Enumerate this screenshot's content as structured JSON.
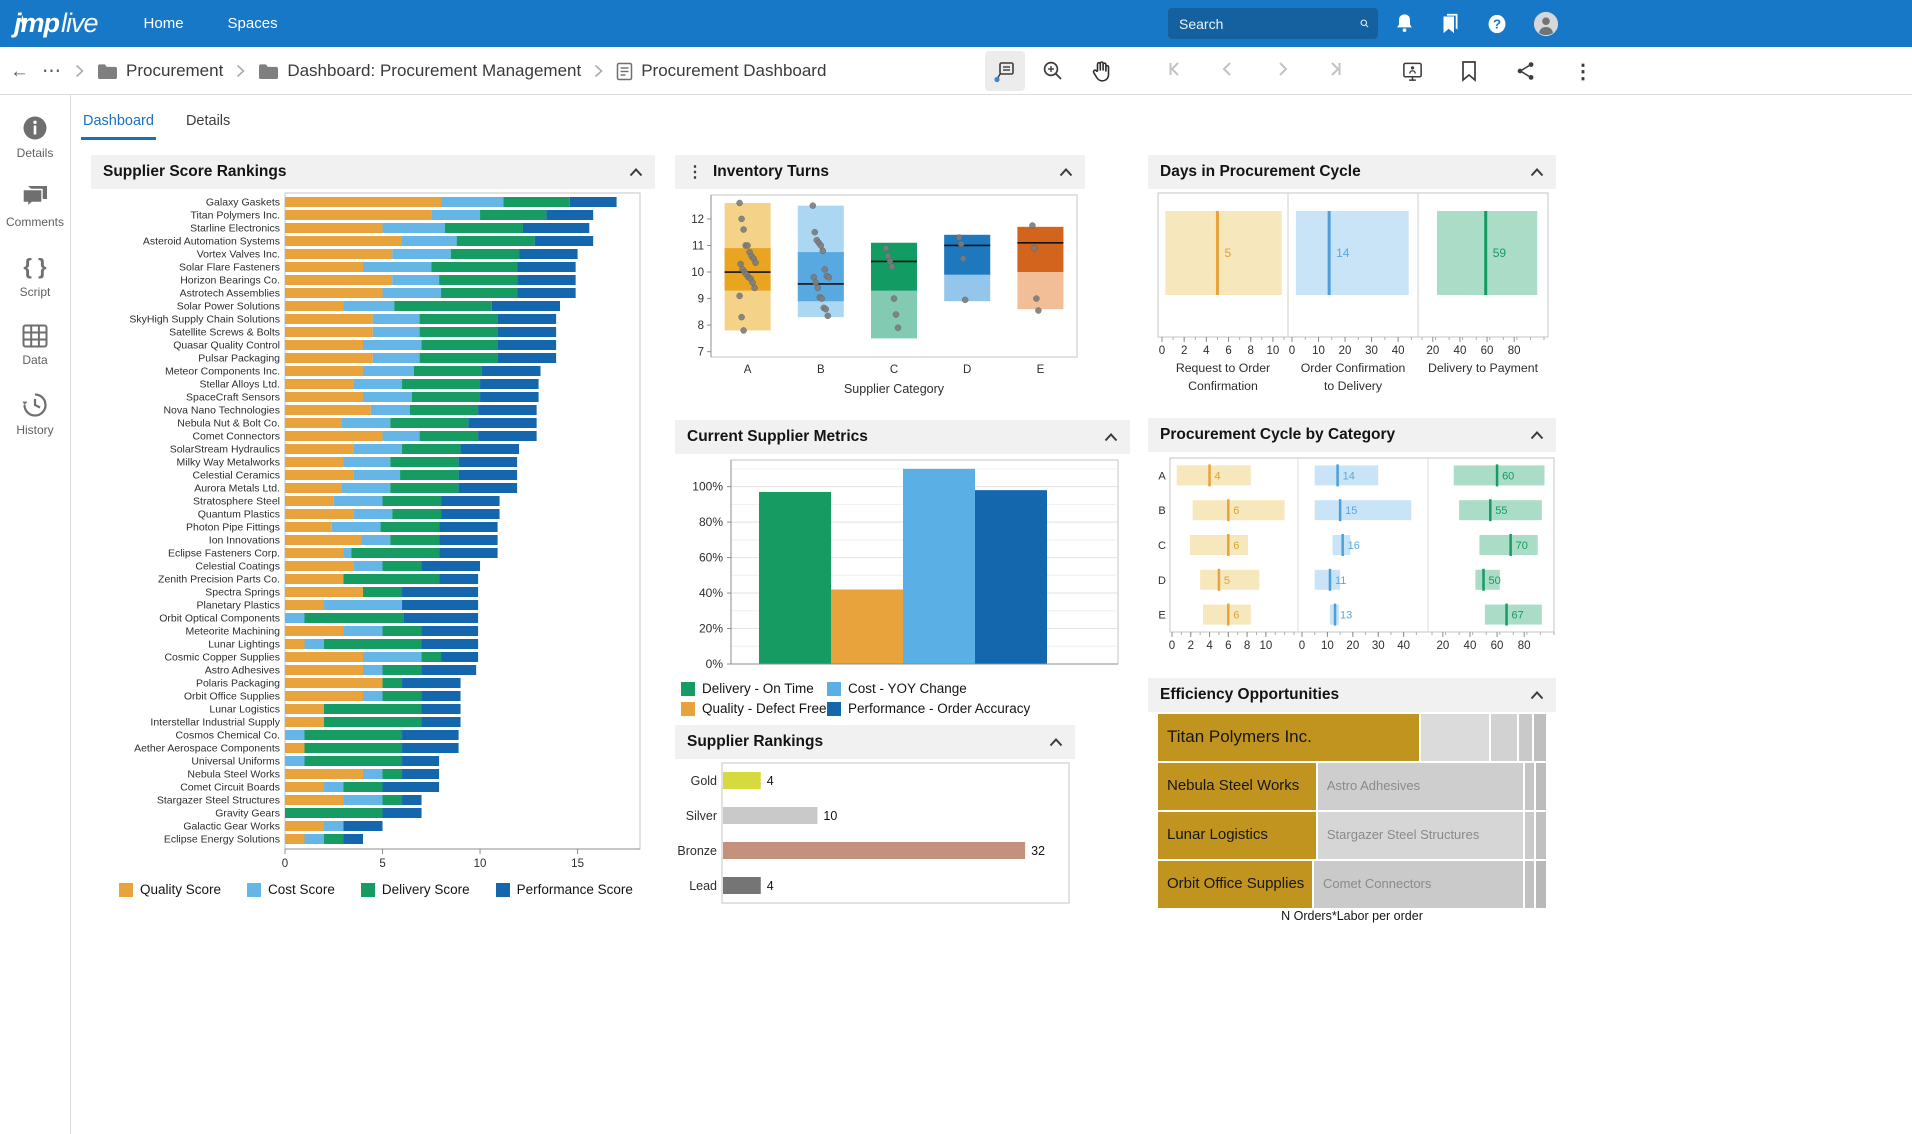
{
  "topnav": {
    "logo_jmp": "jmp",
    "logo_live": "live",
    "items": [
      {
        "label": "Home"
      },
      {
        "label": "Spaces"
      }
    ],
    "search_placeholder": "Search"
  },
  "toolbar": {
    "breadcrumb": [
      {
        "label": "Procurement",
        "icon": "folder"
      },
      {
        "label": "Dashboard: Procurement Management",
        "icon": "folder"
      },
      {
        "label": "Procurement Dashboard",
        "icon": "report"
      }
    ]
  },
  "sidebar": {
    "items": [
      {
        "label": "Details"
      },
      {
        "label": "Comments"
      },
      {
        "label": "Script"
      },
      {
        "label": "Data"
      },
      {
        "label": "History"
      }
    ]
  },
  "tabs": [
    {
      "label": "Dashboard",
      "active": true
    },
    {
      "label": "Details",
      "active": false
    }
  ],
  "chart_data": [
    {
      "id": "supplier-score-rankings",
      "type": "bar",
      "orientation": "horizontal",
      "stacked": true,
      "title": "Supplier Score Rankings",
      "xlim": [
        0,
        18.2
      ],
      "xticks": [
        0,
        5,
        10,
        15
      ],
      "categories": [
        "Galaxy Gaskets",
        "Titan Polymers Inc.",
        "Starline Electronics",
        "Asteroid Automation Systems",
        "Vortex Valves Inc.",
        "Solar Flare Fasteners",
        "Horizon Bearings Co.",
        "Astrotech Assemblies",
        "Solar Power Solutions",
        "SkyHigh Supply Chain Solutions",
        "Satellite Screws & Bolts",
        "Quasar Quality Control",
        "Pulsar Packaging",
        "Meteor Components Inc.",
        "Stellar Alloys Ltd.",
        "SpaceCraft Sensors",
        "Nova Nano Technologies",
        "Nebula Nut & Bolt Co.",
        "Comet Connectors",
        "SolarStream Hydraulics",
        "Milky Way Metalworks",
        "Celestial Ceramics",
        "Aurora Metals Ltd.",
        "Stratosphere Steel",
        "Quantum Plastics",
        "Photon Pipe Fittings",
        "Ion Innovations",
        "Eclipse Fasteners Corp.",
        "Celestial Coatings",
        "Zenith Precision Parts Co.",
        "Spectra Springs",
        "Planetary Plastics",
        "Orbit Optical Components",
        "Meteorite Machining",
        "Lunar Lightings",
        "Cosmic Copper Supplies",
        "Astro Adhesives",
        "Polaris Packaging",
        "Orbit Office Supplies",
        "Lunar Logistics",
        "Interstellar Industrial Supply",
        "Cosmos Chemical Co.",
        "Aether Aerospace Components",
        "Universal Uniforms",
        "Nebula Steel Works",
        "Comet Circuit Boards",
        "Stargazer Steel Structures",
        "Gravity Gears",
        "Galactic Gear Works",
        "Eclipse Energy Solutions"
      ],
      "series": [
        {
          "name": "Quality Score",
          "color": "#E8A33C",
          "values": [
            8.0,
            7.5,
            5.0,
            6.0,
            5.5,
            4.0,
            5.5,
            5.0,
            3.0,
            4.5,
            4.5,
            4.0,
            4.5,
            4.0,
            3.5,
            4.0,
            4.4,
            2.9,
            5.0,
            3.5,
            3.0,
            3.5,
            2.9,
            2.5,
            3.5,
            2.4,
            3.9,
            3.0,
            3.5,
            3.0,
            4.0,
            2.0,
            0.0,
            3.0,
            1.0,
            4.0,
            4.0,
            5.0,
            4.0,
            2.0,
            2.0,
            0.0,
            1.0,
            0.0,
            4.0,
            2.0,
            3.0,
            0.0,
            2.0,
            1.0
          ]
        },
        {
          "name": "Cost Score",
          "color": "#65B5E6",
          "values": [
            3.2,
            2.5,
            3.2,
            2.8,
            3.0,
            3.5,
            2.4,
            3.0,
            2.6,
            2.4,
            2.4,
            3.0,
            2.4,
            2.6,
            2.5,
            2.5,
            2.0,
            2.5,
            1.9,
            2.5,
            2.4,
            2.4,
            2.5,
            2.5,
            2.0,
            2.5,
            1.5,
            0.4,
            1.5,
            0.0,
            0.0,
            4.0,
            1.0,
            2.0,
            1.0,
            3.0,
            1.0,
            0.0,
            1.0,
            0.0,
            0.0,
            1.0,
            0.0,
            1.0,
            1.0,
            1.0,
            2.0,
            0.0,
            1.0,
            1.0
          ]
        },
        {
          "name": "Delivery Score",
          "color": "#169B62",
          "values": [
            3.4,
            3.4,
            4.0,
            4.0,
            3.5,
            4.4,
            4.0,
            3.9,
            5.0,
            4.0,
            4.0,
            3.9,
            4.0,
            3.5,
            4.0,
            3.5,
            3.5,
            4.0,
            3.0,
            3.0,
            3.5,
            3.0,
            3.5,
            3.0,
            2.5,
            3.0,
            2.5,
            4.5,
            2.0,
            4.9,
            2.0,
            0.0,
            5.1,
            2.0,
            5.0,
            1.0,
            2.0,
            1.0,
            2.0,
            5.0,
            5.0,
            5.0,
            5.0,
            5.0,
            1.0,
            2.0,
            1.0,
            5.0,
            0.0,
            1.0
          ]
        },
        {
          "name": "Performance Score",
          "color": "#1467AD",
          "values": [
            2.4,
            2.4,
            3.4,
            3.0,
            3.0,
            3.0,
            3.0,
            3.0,
            3.5,
            3.0,
            3.0,
            3.0,
            3.0,
            3.0,
            3.0,
            3.0,
            3.0,
            3.5,
            3.0,
            3.0,
            3.0,
            3.0,
            3.0,
            3.0,
            3.0,
            3.0,
            3.0,
            3.0,
            3.0,
            2.0,
            3.9,
            3.9,
            3.8,
            2.9,
            2.9,
            1.9,
            2.8,
            3.0,
            2.0,
            2.0,
            2.0,
            2.9,
            2.9,
            1.9,
            1.9,
            2.9,
            1.0,
            2.0,
            2.0,
            1.0
          ]
        }
      ],
      "legend_position": "bottom"
    },
    {
      "id": "inventory-turns",
      "type": "box",
      "title": "Inventory Turns",
      "xlabel": "Supplier Category",
      "categories": [
        "A",
        "B",
        "C",
        "D",
        "E"
      ],
      "ylim": [
        6.8,
        12.9
      ],
      "yticks": [
        7,
        8,
        9,
        10,
        11,
        12
      ],
      "boxes": [
        {
          "category": "A",
          "light_color": "#F4D389",
          "dark_color": "#E9A522",
          "range": [
            7.8,
            12.6
          ],
          "quartiles": [
            9.3,
            10.9
          ],
          "median": 10.0,
          "points": [
            12.6,
            12.0,
            11.6,
            11.0,
            11.0,
            10.75,
            10.6,
            10.5,
            10.35,
            10.3,
            10.1,
            10.0,
            9.9,
            9.8,
            9.75,
            9.6,
            9.4,
            9.1,
            8.3,
            7.8
          ]
        },
        {
          "category": "B",
          "light_color": "#ABD7F3",
          "dark_color": "#58A9DF",
          "range": [
            8.3,
            12.5
          ],
          "quartiles": [
            8.9,
            10.75
          ],
          "median": 9.55,
          "points": [
            12.5,
            11.5,
            11.2,
            11.1,
            11.0,
            10.8,
            10.1,
            9.85,
            9.8,
            9.8,
            9.6,
            9.4,
            9.05,
            9.0,
            8.65,
            8.6,
            8.35
          ]
        },
        {
          "category": "C",
          "light_color": "#82CBB2",
          "dark_color": "#129B63",
          "range": [
            7.5,
            11.1
          ],
          "quartiles": [
            9.3,
            11.1
          ],
          "median": 10.4,
          "points": [
            10.9,
            10.6,
            10.4,
            10.2,
            9.0,
            8.4,
            7.9
          ]
        },
        {
          "category": "D",
          "light_color": "#93C6EA",
          "dark_color": "#1E78BE",
          "range": [
            8.9,
            11.4
          ],
          "quartiles": [
            9.9,
            11.4
          ],
          "median": 11.0,
          "points": [
            11.3,
            11.05,
            10.5,
            8.95
          ]
        },
        {
          "category": "E",
          "light_color": "#F2BE97",
          "dark_color": "#D2641E",
          "range": [
            8.6,
            11.7
          ],
          "quartiles": [
            10.0,
            11.7
          ],
          "median": 11.1,
          "points": [
            11.75,
            10.9,
            9.0,
            8.55
          ]
        }
      ]
    },
    {
      "id": "days-in-procurement-cycle",
      "type": "interval",
      "title": "Days in Procurement Cycle",
      "panels": [
        {
          "label_lines": [
            "Request to Order",
            "Confirmation"
          ],
          "value": 5,
          "band": [
            0.3,
            10.8
          ],
          "xlim": [
            0,
            11
          ],
          "xticks": [
            0,
            2,
            4,
            6,
            8,
            10
          ],
          "minor": 1,
          "band_color": "#F7E7BC",
          "line_color": "#E8A33C",
          "value_color": "#DFA233"
        },
        {
          "label_lines": [
            "Order Confirmation",
            "to Delivery"
          ],
          "value": 14,
          "band": [
            1.5,
            44
          ],
          "xlim": [
            0,
            46
          ],
          "xticks": [
            0,
            10,
            20,
            30,
            40
          ],
          "minor": 5,
          "band_color": "#C9E4F7",
          "line_color": "#4D9FDC",
          "value_color": "#5AA7DF"
        },
        {
          "label_lines": [
            "Delivery to Payment"
          ],
          "value": 59,
          "band": [
            23,
            97
          ],
          "xlim": [
            12,
            102
          ],
          "xticks": [
            20,
            40,
            60,
            80
          ],
          "minor": 10,
          "band_color": "#ABDCC7",
          "line_color": "#169B62",
          "value_color": "#169B62"
        }
      ]
    },
    {
      "id": "current-supplier-metrics",
      "type": "bar",
      "title": "Current Supplier Metrics",
      "categories": [
        "Delivery - On Time",
        "Quality - Defect Free",
        "Cost - YOY Change",
        "Performance - Order Accuracy"
      ],
      "values": [
        97,
        42,
        110,
        98
      ],
      "colors": [
        "#169B62",
        "#E8A33C",
        "#5AB0E5",
        "#1467AD"
      ],
      "ylim": [
        0,
        115
      ],
      "yticks_major": [
        0,
        20,
        40,
        60,
        80,
        100
      ],
      "ytick_minor_step": 10,
      "legend": [
        {
          "label": "Delivery - On Time",
          "color": "#169B62"
        },
        {
          "label": "Quality - Defect Free",
          "color": "#E8A33C"
        },
        {
          "label": "Cost - YOY Change",
          "color": "#5AB0E5"
        },
        {
          "label": "Performance - Order Accuracy",
          "color": "#1467AD"
        }
      ]
    },
    {
      "id": "procurement-cycle-by-category",
      "type": "interval",
      "title": "Procurement Cycle by Category",
      "rows": [
        "A",
        "B",
        "C",
        "D",
        "E"
      ],
      "panels": [
        {
          "name": "Request to Order Confirmation",
          "xlim": [
            0,
            13
          ],
          "xticks": [
            0,
            2,
            4,
            6,
            8,
            10
          ],
          "minor": 1,
          "band_color": "#F7E7BC",
          "line_color": "#E8A33C",
          "value_color": "#DFA233",
          "items": [
            {
              "row": "A",
              "value": 4,
              "band": [
                0.5,
                8.4
              ]
            },
            {
              "row": "B",
              "value": 6,
              "band": [
                2.2,
                12
              ]
            },
            {
              "row": "C",
              "value": 6,
              "band": [
                1.9,
                8.1
              ]
            },
            {
              "row": "D",
              "value": 5,
              "band": [
                3,
                9.3
              ]
            },
            {
              "row": "E",
              "value": 6,
              "band": [
                3.3,
                8.4
              ]
            }
          ]
        },
        {
          "name": "Order Confirmation to Delivery",
          "xlim": [
            0,
            48
          ],
          "xticks": [
            0,
            10,
            20,
            30,
            40
          ],
          "minor": 5,
          "band_color": "#C9E4F7",
          "line_color": "#4D9FDC",
          "value_color": "#5AA7DF",
          "items": [
            {
              "row": "A",
              "value": 14,
              "band": [
                5,
                30
              ]
            },
            {
              "row": "B",
              "value": 15,
              "band": [
                5,
                43
              ]
            },
            {
              "row": "C",
              "value": 16,
              "band": [
                12,
                19
              ]
            },
            {
              "row": "D",
              "value": 11,
              "band": [
                5,
                15
              ]
            },
            {
              "row": "E",
              "value": 13,
              "band": [
                11,
                14.5
              ]
            }
          ]
        },
        {
          "name": "Delivery to Payment",
          "xlim": [
            12,
            102
          ],
          "xticks": [
            20,
            40,
            60,
            80
          ],
          "minor": 10,
          "band_color": "#ABDCC7",
          "line_color": "#169B62",
          "value_color": "#169B62",
          "items": [
            {
              "row": "A",
              "value": 60,
              "band": [
                28,
                95
              ]
            },
            {
              "row": "B",
              "value": 55,
              "band": [
                32,
                93
              ]
            },
            {
              "row": "C",
              "value": 70,
              "band": [
                47,
                90
              ]
            },
            {
              "row": "D",
              "value": 50,
              "band": [
                44,
                62
              ]
            },
            {
              "row": "E",
              "value": 67,
              "band": [
                51,
                93
              ]
            }
          ]
        }
      ]
    },
    {
      "id": "supplier-rankings",
      "type": "bar",
      "orientation": "horizontal",
      "title": "Supplier Rankings",
      "categories": [
        "Gold",
        "Silver",
        "Bronze",
        "Lead"
      ],
      "values": [
        4,
        10,
        32,
        4
      ],
      "colors": [
        "#D6DA3F",
        "#C9C9C9",
        "#C4917C",
        "#757575"
      ],
      "xlim": [
        0,
        34
      ]
    },
    {
      "id": "efficiency-opportunities",
      "type": "treemap",
      "title": "Efficiency Opportunities",
      "caption": "N Orders*Labor per order",
      "rows": [
        {
          "cells": [
            {
              "label": "Titan Polymers Inc.",
              "width": 67.5,
              "color": "#C0941F",
              "text_color": "#161616",
              "font_size": 17
            },
            {
              "label": "",
              "width": 18,
              "color": "#DBDBDB"
            },
            {
              "label": "",
              "width": 7,
              "color": "#D2D2D2"
            },
            {
              "label": "",
              "width": 4,
              "color": "#C9C9C9"
            },
            {
              "label": "",
              "width": 3.5,
              "color": "#BFBFBF"
            }
          ]
        },
        {
          "cells": [
            {
              "label": "Nebula Steel Works",
              "width": 41,
              "color": "#C0941F",
              "text_color": "#161616",
              "font_size": 15
            },
            {
              "label": "Astro Adhesives",
              "width": 53,
              "color": "#CECECE",
              "text_color": "#8A8A8A",
              "font_size": 13
            },
            {
              "label": "",
              "width": 3,
              "color": "#C5C5C5"
            },
            {
              "label": "",
              "width": 3,
              "color": "#BCBCBC"
            }
          ]
        },
        {
          "cells": [
            {
              "label": "Lunar Logistics",
              "width": 41,
              "color": "#C0941F",
              "text_color": "#161616",
              "font_size": 15
            },
            {
              "label": "Stargazer Steel Structures",
              "width": 53,
              "color": "#D6D6D6",
              "text_color": "#8A8A8A",
              "font_size": 13
            },
            {
              "label": "",
              "width": 3,
              "color": "#CACACA"
            },
            {
              "label": "",
              "width": 3,
              "color": "#C0C0C0"
            }
          ]
        },
        {
          "cells": [
            {
              "label": "Orbit Office Supplies",
              "width": 40,
              "color": "#C0941F",
              "text_color": "#161616",
              "font_size": 15
            },
            {
              "label": "Comet Connectors",
              "width": 54,
              "color": "#CACACA",
              "text_color": "#8A8A8A",
              "font_size": 13
            },
            {
              "label": "",
              "width": 3,
              "color": "#C1C1C1"
            },
            {
              "label": "",
              "width": 3,
              "color": "#B8B8B8"
            }
          ]
        }
      ]
    }
  ]
}
